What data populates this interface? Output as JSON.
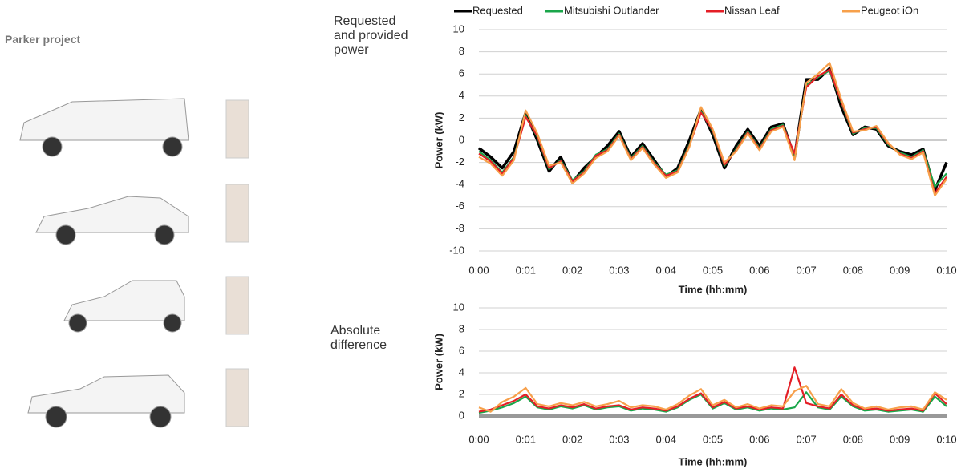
{
  "header": {
    "title": "Parker project"
  },
  "chart_data": [
    {
      "type": "line",
      "title": "Requested and provided power",
      "ylabel": "Power (kW)",
      "xlabel": "Time (hh:mm)",
      "legend": "top",
      "grid": true,
      "x": [
        0,
        0.25,
        0.5,
        0.75,
        1,
        1.25,
        1.5,
        1.75,
        2,
        2.25,
        2.5,
        2.75,
        3,
        3.25,
        3.5,
        3.75,
        4,
        4.25,
        4.5,
        4.75,
        5,
        5.25,
        5.5,
        5.75,
        6,
        6.25,
        6.5,
        6.75,
        7,
        7.25,
        7.5,
        7.75,
        8,
        8.25,
        8.5,
        8.75,
        9,
        9.25,
        9.5,
        9.75,
        10
      ],
      "xlim": [
        0,
        10
      ],
      "xticks": [
        {
          "value": 0,
          "label": "0:00"
        },
        {
          "value": 1,
          "label": "0:01"
        },
        {
          "value": 2,
          "label": "0:02"
        },
        {
          "value": 3,
          "label": "0:03"
        },
        {
          "value": 4,
          "label": "0:04"
        },
        {
          "value": 5,
          "label": "0:05"
        },
        {
          "value": 6,
          "label": "0:06"
        },
        {
          "value": 7,
          "label": "0:07"
        },
        {
          "value": 8,
          "label": "0:08"
        },
        {
          "value": 9,
          "label": "0:09"
        },
        {
          "value": 10,
          "label": "0:10"
        }
      ],
      "ylim": [
        -10,
        10
      ],
      "yticks": [
        -10,
        -8,
        -6,
        -4,
        -2,
        0,
        2,
        4,
        6,
        8,
        10
      ],
      "series": [
        {
          "name": "Requested",
          "color": "#000000",
          "values": [
            -0.7,
            -1.5,
            -2.5,
            -1,
            2.5,
            0,
            -2.8,
            -1.5,
            -3.8,
            -2.5,
            -1.5,
            -0.5,
            0.8,
            -1.5,
            -0.3,
            -1.8,
            -3.3,
            -2.5,
            0,
            2.8,
            0.5,
            -2.5,
            -0.5,
            1,
            -0.5,
            1.2,
            1.5,
            -1.5,
            5.5,
            5.5,
            6.5,
            3,
            0.5,
            1.2,
            1,
            -0.5,
            -1,
            -1.3,
            -0.8,
            -4.5,
            -2
          ]
        },
        {
          "name": "Mitsubishi Outlander",
          "color": "#1aa64a",
          "values": [
            -1,
            -1.8,
            -2.9,
            -1.5,
            2.2,
            0.3,
            -2.6,
            -1.8,
            -3.6,
            -2.8,
            -1.3,
            -0.8,
            0.6,
            -1.6,
            -0.5,
            -2,
            -3.1,
            -2.7,
            -0.4,
            2.6,
            0.8,
            -2.3,
            -0.8,
            0.8,
            -0.7,
            1,
            1.4,
            -1.3,
            5,
            5.7,
            6.3,
            3.4,
            0.6,
            1.1,
            1.1,
            -0.4,
            -1.1,
            -1.5,
            -0.9,
            -4.2,
            -3
          ]
        },
        {
          "name": "Nissan Leaf",
          "color": "#e41e26",
          "values": [
            -1.2,
            -1.9,
            -3,
            -1.6,
            2.1,
            0.4,
            -2.5,
            -1.9,
            -3.7,
            -2.9,
            -1.4,
            -0.9,
            0.5,
            -1.7,
            -0.6,
            -2.1,
            -3.2,
            -2.8,
            -0.5,
            2.5,
            0.9,
            -2.2,
            -0.9,
            0.7,
            -0.8,
            0.9,
            1.3,
            -1.2,
            4.8,
            5.8,
            6.4,
            3.5,
            0.7,
            1,
            1.2,
            -0.3,
            -1.2,
            -1.6,
            -1,
            -4.8,
            -3.3
          ]
        },
        {
          "name": "Peugeot iOn",
          "color": "#f7a04b",
          "values": [
            -1.5,
            -2.1,
            -3.2,
            -1.8,
            2.7,
            0.6,
            -2.3,
            -2,
            -3.9,
            -3,
            -1.6,
            -1,
            0.4,
            -1.8,
            -0.7,
            -2.2,
            -3.4,
            -2.9,
            -0.6,
            3,
            1,
            -2,
            -1,
            0.6,
            -0.9,
            0.8,
            1.2,
            -1.8,
            5.2,
            6,
            7,
            3.7,
            0.8,
            0.9,
            1.3,
            -0.2,
            -1.3,
            -1.7,
            -1.1,
            -5,
            -3.5
          ]
        }
      ]
    },
    {
      "type": "line",
      "title": "Absolute difference",
      "ylabel": "Power (kW)",
      "xlabel": "Time (hh:mm)",
      "grid": true,
      "x": [
        0,
        0.25,
        0.5,
        0.75,
        1,
        1.25,
        1.5,
        1.75,
        2,
        2.25,
        2.5,
        2.75,
        3,
        3.25,
        3.5,
        3.75,
        4,
        4.25,
        4.5,
        4.75,
        5,
        5.25,
        5.5,
        5.75,
        6,
        6.25,
        6.5,
        6.75,
        7,
        7.25,
        7.5,
        7.75,
        8,
        8.25,
        8.5,
        8.75,
        9,
        9.25,
        9.5,
        9.75,
        10
      ],
      "xlim": [
        0,
        10
      ],
      "xticks": [
        {
          "value": 0,
          "label": "0:00"
        },
        {
          "value": 1,
          "label": "0:01"
        },
        {
          "value": 2,
          "label": "0:02"
        },
        {
          "value": 3,
          "label": "0:03"
        },
        {
          "value": 4,
          "label": "0:04"
        },
        {
          "value": 5,
          "label": "0:05"
        },
        {
          "value": 6,
          "label": "0:06"
        },
        {
          "value": 7,
          "label": "0:07"
        },
        {
          "value": 8,
          "label": "0:08"
        },
        {
          "value": 9,
          "label": "0:09"
        },
        {
          "value": 10,
          "label": "0:10"
        }
      ],
      "ylim": [
        0,
        10
      ],
      "yticks": [
        0,
        2,
        4,
        6,
        8,
        10
      ],
      "series": [
        {
          "color": "#1aa64a",
          "values": [
            0.3,
            0.5,
            0.8,
            1.2,
            1.8,
            0.8,
            0.6,
            0.9,
            0.7,
            1,
            0.6,
            0.8,
            0.9,
            0.5,
            0.7,
            0.6,
            0.4,
            0.8,
            1.5,
            2,
            0.7,
            1.2,
            0.6,
            0.8,
            0.5,
            0.7,
            0.6,
            0.8,
            2.2,
            0.8,
            0.6,
            1.8,
            0.9,
            0.5,
            0.6,
            0.4,
            0.5,
            0.6,
            0.4,
            1.8,
            0.9
          ]
        },
        {
          "color": "#e41e26",
          "values": [
            0.4,
            0.6,
            1,
            1.4,
            2,
            0.9,
            0.7,
            1,
            0.8,
            1.1,
            0.7,
            0.9,
            1,
            0.6,
            0.8,
            0.7,
            0.5,
            0.9,
            1.6,
            2.1,
            0.8,
            1.3,
            0.7,
            0.9,
            0.6,
            0.8,
            0.7,
            4.5,
            1.2,
            0.9,
            0.7,
            2,
            1,
            0.6,
            0.7,
            0.5,
            0.6,
            0.7,
            0.5,
            2.1,
            1.1
          ]
        },
        {
          "color": "#f7a04b",
          "values": [
            0.8,
            0.4,
            1.3,
            1.8,
            2.6,
            1.1,
            0.9,
            1.2,
            1,
            1.3,
            0.9,
            1.1,
            1.4,
            0.8,
            1,
            0.9,
            0.6,
            1.1,
            1.9,
            2.5,
            1,
            1.5,
            0.8,
            1.1,
            0.7,
            1,
            0.9,
            2.3,
            2.8,
            1.1,
            0.9,
            2.5,
            1.2,
            0.7,
            0.9,
            0.6,
            0.8,
            0.9,
            0.6,
            2.2,
            1.5
          ]
        }
      ]
    }
  ]
}
